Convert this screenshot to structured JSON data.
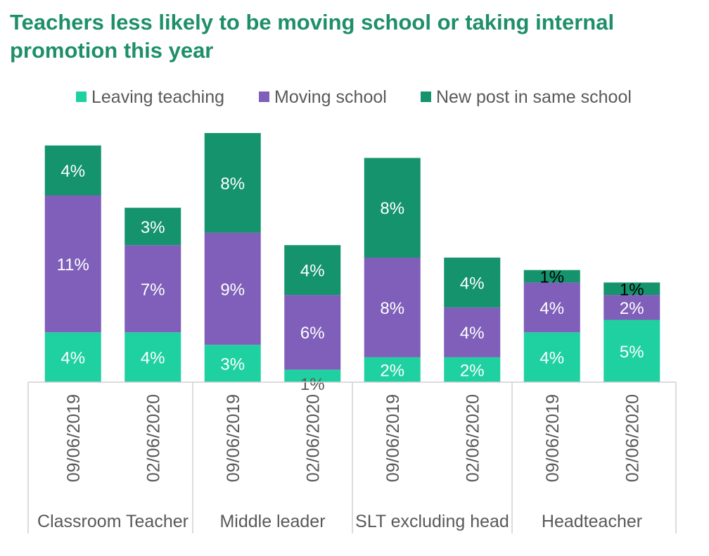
{
  "chart_data": {
    "type": "bar",
    "stacked": true,
    "title": "Teachers less likely to be moving school or taking internal promotion this year",
    "groups": [
      "Classroom Teacher",
      "Middle leader",
      "SLT excluding head",
      "Headteacher"
    ],
    "categories": [
      "09/06/2019",
      "02/06/2020",
      "09/06/2019",
      "02/06/2020",
      "09/06/2019",
      "02/06/2020",
      "09/06/2019",
      "02/06/2020"
    ],
    "series": [
      {
        "name": "Leaving teaching",
        "color": "#1fd1a1",
        "values": [
          4,
          4,
          3,
          1,
          2,
          2,
          4,
          5
        ],
        "labels": [
          "4%",
          "4%",
          "3%",
          "1%",
          "2%",
          "2%",
          "4%",
          "5%"
        ]
      },
      {
        "name": "Moving school",
        "color": "#7f5fb9",
        "values": [
          11,
          7,
          9,
          6,
          8,
          4,
          4,
          2
        ],
        "labels": [
          "11%",
          "7%",
          "9%",
          "6%",
          "8%",
          "4%",
          "4%",
          "2%"
        ]
      },
      {
        "name": "New post in same school",
        "color": "#14936c",
        "values": [
          4,
          3,
          8,
          4,
          8,
          4,
          1,
          1
        ],
        "labels": [
          "4%",
          "3%",
          "8%",
          "4%",
          "8%",
          "4%",
          "1%",
          "1%"
        ]
      }
    ],
    "legend": "top",
    "grid": false
  }
}
